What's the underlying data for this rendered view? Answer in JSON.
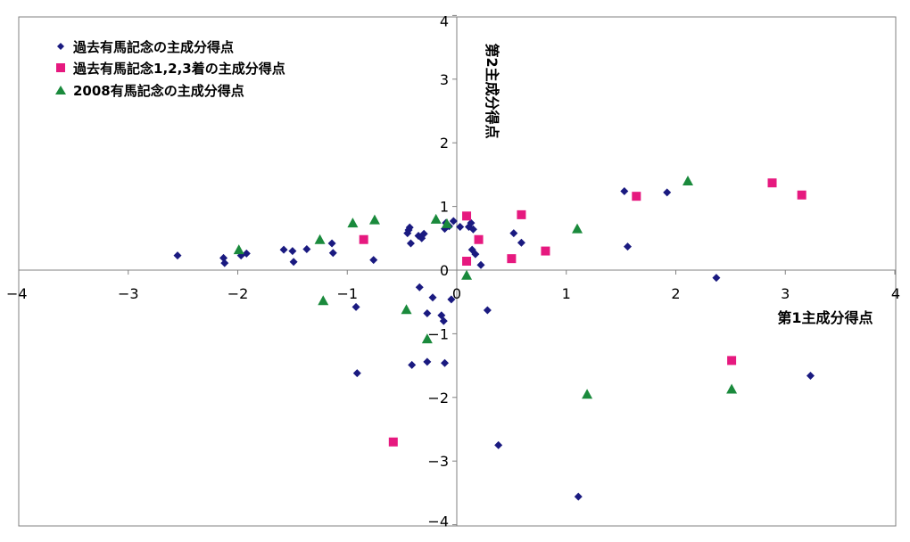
{
  "chart_data": {
    "type": "scatter",
    "xlabel": "第1主成分得点",
    "ylabel": "第2主成分得点",
    "xlim": [
      -4,
      4
    ],
    "ylim": [
      -4,
      4
    ],
    "xticks": [
      "−4",
      "−3",
      "−2",
      "−1",
      "0",
      "1",
      "2",
      "3",
      "4"
    ],
    "yticks": [
      "4",
      "3",
      "2",
      "1",
      "0",
      "−1",
      "−2",
      "−3",
      "−4"
    ],
    "grid": false,
    "legend": "top-left",
    "series": [
      {
        "name": "過去有馬記念の主成分得点",
        "marker": "diamond",
        "color": "#1a1a80",
        "points": [
          [
            -2.55,
            0.23
          ],
          [
            -2.13,
            0.19
          ],
          [
            -2.12,
            0.11
          ],
          [
            -1.97,
            0.23
          ],
          [
            -1.92,
            0.26
          ],
          [
            -1.58,
            0.32
          ],
          [
            -1.5,
            0.3
          ],
          [
            -1.49,
            0.13
          ],
          [
            -1.37,
            0.33
          ],
          [
            -1.14,
            0.42
          ],
          [
            -1.13,
            0.27
          ],
          [
            -0.92,
            -0.58
          ],
          [
            -0.91,
            -1.62
          ],
          [
            -0.76,
            0.16
          ],
          [
            -0.45,
            0.58
          ],
          [
            -0.44,
            0.63
          ],
          [
            -0.43,
            0.67
          ],
          [
            -0.42,
            0.42
          ],
          [
            -0.41,
            -1.49
          ],
          [
            -0.35,
            0.54
          ],
          [
            -0.34,
            -0.27
          ],
          [
            -0.32,
            0.5
          ],
          [
            -0.3,
            0.57
          ],
          [
            -0.27,
            -0.68
          ],
          [
            -0.27,
            -1.44
          ],
          [
            -0.22,
            -0.43
          ],
          [
            -0.14,
            -0.71
          ],
          [
            -0.12,
            -0.8
          ],
          [
            -0.11,
            0.65
          ],
          [
            -0.11,
            -1.46
          ],
          [
            -0.1,
            0.74
          ],
          [
            -0.07,
            0.69
          ],
          [
            -0.05,
            -0.46
          ],
          [
            -0.03,
            0.77
          ],
          [
            0.03,
            0.68
          ],
          [
            0.11,
            0.68
          ],
          [
            0.13,
            0.74
          ],
          [
            0.14,
            0.32
          ],
          [
            0.15,
            0.64
          ],
          [
            0.17,
            0.25
          ],
          [
            0.22,
            0.08
          ],
          [
            0.28,
            -0.63
          ],
          [
            0.38,
            -2.75
          ],
          [
            0.52,
            0.58
          ],
          [
            0.59,
            0.43
          ],
          [
            1.11,
            -3.56
          ],
          [
            1.53,
            1.24
          ],
          [
            1.56,
            0.37
          ],
          [
            1.92,
            1.22
          ],
          [
            2.37,
            -0.12
          ],
          [
            3.23,
            -1.66
          ]
        ]
      },
      {
        "name": "過去有馬記念1,2,3着の主成分得点",
        "marker": "square",
        "color": "#e6197f",
        "points": [
          [
            -0.85,
            0.48
          ],
          [
            -0.58,
            -2.7
          ],
          [
            0.09,
            0.85
          ],
          [
            0.09,
            0.14
          ],
          [
            0.2,
            0.48
          ],
          [
            0.5,
            0.18
          ],
          [
            0.59,
            0.87
          ],
          [
            0.81,
            0.3
          ],
          [
            1.64,
            1.16
          ],
          [
            2.51,
            -1.42
          ],
          [
            2.88,
            1.37
          ],
          [
            3.15,
            1.18
          ]
        ]
      },
      {
        "name": "2008有馬記念の主成分得点",
        "marker": "triangle",
        "color": "#1a8a3c",
        "points": [
          [
            -1.99,
            0.32
          ],
          [
            -1.25,
            0.48
          ],
          [
            -1.22,
            -0.48
          ],
          [
            -0.95,
            0.74
          ],
          [
            -0.75,
            0.79
          ],
          [
            -0.46,
            -0.62
          ],
          [
            -0.27,
            -1.08
          ],
          [
            -0.19,
            0.8
          ],
          [
            -0.09,
            0.73
          ],
          [
            0.09,
            -0.08
          ],
          [
            1.1,
            0.65
          ],
          [
            1.19,
            -1.95
          ],
          [
            2.11,
            1.4
          ],
          [
            2.51,
            -1.87
          ]
        ]
      }
    ]
  }
}
